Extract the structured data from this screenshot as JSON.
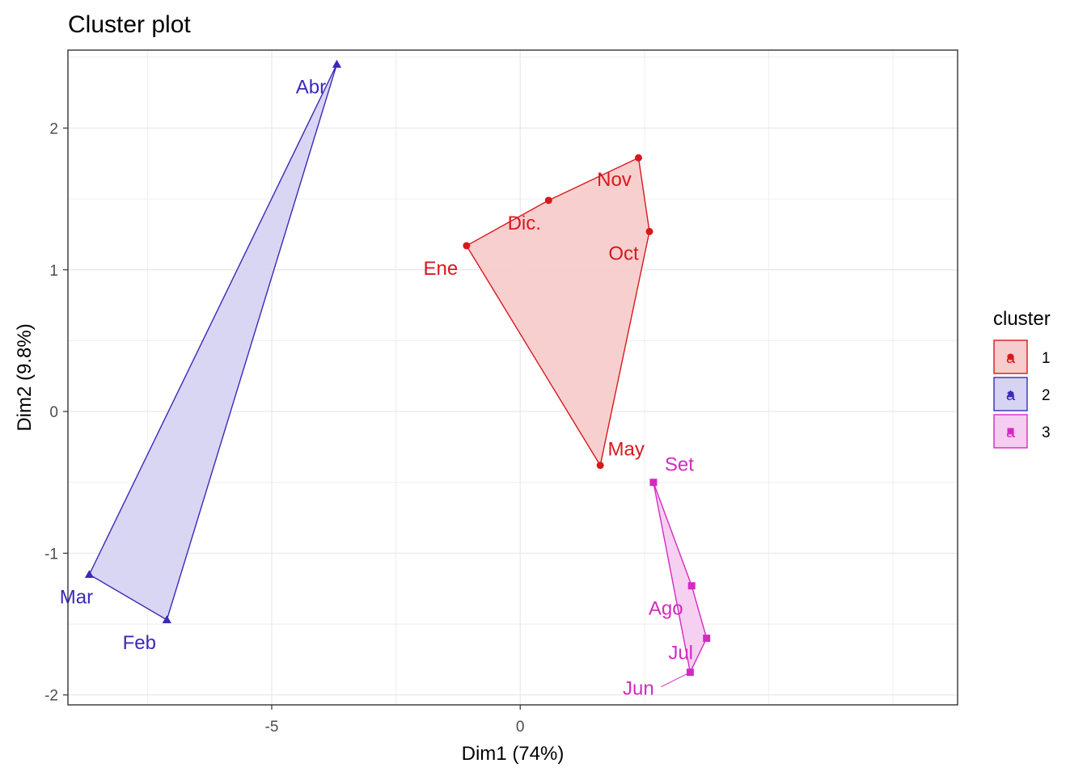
{
  "chart_data": {
    "type": "scatter",
    "title": "Cluster plot",
    "xlabel": "Dim1 (74%)",
    "ylabel": "Dim2 (9.8%)",
    "xlim": [
      -9.1,
      8.8
    ],
    "ylim": [
      -2.07,
      2.55
    ],
    "x_ticks": [
      -5,
      0
    ],
    "y_ticks": [
      -2,
      -1,
      0,
      1,
      2
    ],
    "grid": true,
    "legend": {
      "title": "cluster",
      "placement": "right",
      "key_letter": "a"
    },
    "series": [
      {
        "name": "1",
        "color": "#d7191c",
        "fill": "#f7cccc",
        "marker": "circle",
        "points": [
          {
            "label": "Ene",
            "x": -1.08,
            "y": 1.17
          },
          {
            "label": "Dic.",
            "x": 0.57,
            "y": 1.49
          },
          {
            "label": "Nov",
            "x": 2.38,
            "y": 1.79
          },
          {
            "label": "Oct",
            "x": 2.6,
            "y": 1.27
          },
          {
            "label": "May",
            "x": 1.61,
            "y": -0.38
          }
        ],
        "hull": [
          "Ene",
          "Dic.",
          "Nov",
          "Oct",
          "May"
        ]
      },
      {
        "name": "2",
        "color": "#3a2ab8",
        "fill": "#d6d4f2",
        "marker": "triangle",
        "points": [
          {
            "label": "Abr",
            "x": -3.69,
            "y": 2.45
          },
          {
            "label": "Mar",
            "x": -8.67,
            "y": -1.15
          },
          {
            "label": "Feb",
            "x": -7.11,
            "y": -1.47
          }
        ],
        "hull": [
          "Abr",
          "Mar",
          "Feb"
        ]
      },
      {
        "name": "3",
        "color": "#d42ac2",
        "fill": "#f5cdf0",
        "marker": "square",
        "points": [
          {
            "label": "Set",
            "x": 2.68,
            "y": -0.5
          },
          {
            "label": "Ago",
            "x": 3.45,
            "y": -1.23
          },
          {
            "label": "Jul",
            "x": 3.75,
            "y": -1.6
          },
          {
            "label": "Jun",
            "x": 3.42,
            "y": -1.84
          }
        ],
        "hull": [
          "Set",
          "Ago",
          "Jul",
          "Jun"
        ]
      }
    ]
  }
}
